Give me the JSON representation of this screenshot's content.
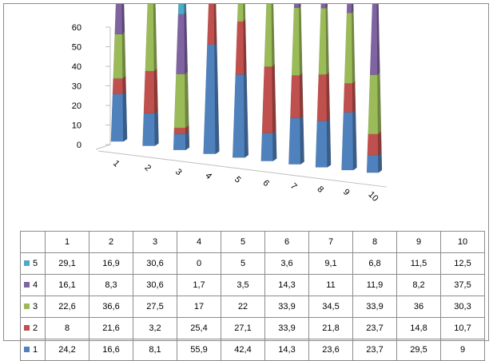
{
  "chart_data": {
    "type": "bar",
    "variant": "3d-stacked-column-cone",
    "categories": [
      "1",
      "2",
      "3",
      "4",
      "5",
      "6",
      "7",
      "8",
      "9",
      "10"
    ],
    "series": [
      {
        "name": "1",
        "color": "#4f81bd",
        "values": [
          24.2,
          16.6,
          8.1,
          55.9,
          42.4,
          14.3,
          23.6,
          23.7,
          29.5,
          9
        ]
      },
      {
        "name": "2",
        "color": "#c0504d",
        "values": [
          8,
          21.6,
          3.2,
          25.4,
          27.1,
          33.9,
          21.8,
          23.7,
          14.8,
          10.7
        ]
      },
      {
        "name": "3",
        "color": "#9bbb59",
        "values": [
          22.6,
          36.6,
          27.5,
          17,
          22,
          33.9,
          34.5,
          33.9,
          36,
          30.3
        ]
      },
      {
        "name": "4",
        "color": "#8064a2",
        "values": [
          16.1,
          8.3,
          30.6,
          1.7,
          3.5,
          14.3,
          11,
          11.9,
          8.2,
          37.5
        ]
      },
      {
        "name": "5",
        "color": "#4bacc6",
        "values": [
          29.1,
          16.9,
          30.6,
          0,
          5,
          3.6,
          9.1,
          6.8,
          11.5,
          12.5
        ]
      }
    ],
    "table": {
      "rows_top_to_bottom": [
        "5",
        "4",
        "3",
        "2",
        "1"
      ],
      "cells": {
        "1": [
          "24,2",
          "16,6",
          "8,1",
          "55,9",
          "42,4",
          "14,3",
          "23,6",
          "23,7",
          "29,5",
          "9"
        ],
        "2": [
          "8",
          "21,6",
          "3,2",
          "25,4",
          "27,1",
          "33,9",
          "21,8",
          "23,7",
          "14,8",
          "10,7"
        ],
        "3": [
          "22,6",
          "36,6",
          "27,5",
          "17",
          "22",
          "33,9",
          "34,5",
          "33,9",
          "36",
          "30,3"
        ],
        "4": [
          "16,1",
          "8,3",
          "30,6",
          "1,7",
          "3,5",
          "14,3",
          "11",
          "11,9",
          "8,2",
          "37,5"
        ],
        "5": [
          "29,1",
          "16,9",
          "30,6",
          "0",
          "5",
          "3,6",
          "9,1",
          "6,8",
          "11,5",
          "12,5"
        ]
      }
    },
    "yticks": [
      "0",
      "10",
      "20",
      "30",
      "40",
      "50",
      "60"
    ],
    "ylim": [
      0,
      60
    ],
    "title": "",
    "xlabel": "",
    "ylabel": "",
    "grid": false,
    "legend": "data-table-left"
  }
}
